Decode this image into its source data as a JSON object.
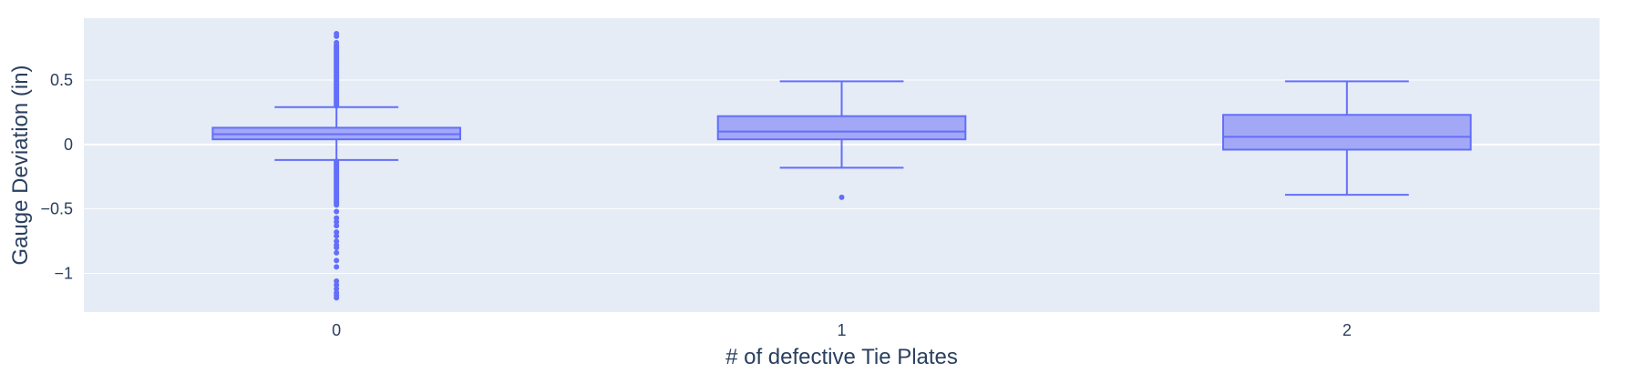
{
  "chart_data": {
    "type": "box",
    "xlabel": "# of defective Tie Plates",
    "ylabel": "Gauge Deviation (in)",
    "categories": [
      "0",
      "1",
      "2"
    ],
    "ylim": [
      -1.3,
      0.98
    ],
    "yticks": [
      -1,
      -0.5,
      0,
      0.5
    ],
    "ytick_labels": [
      "−1",
      "−0.5",
      "0",
      "0.5"
    ],
    "grid": true,
    "colors": {
      "plot_bg": "#e5ecf6",
      "grid": "#ffffff",
      "box_line": "#636efa",
      "box_fill": "#a3a8f6",
      "marker": "#636efa",
      "text": "#2a3f5f"
    },
    "boxes": [
      {
        "category": "0",
        "min": -0.12,
        "q1": 0.04,
        "median": 0.08,
        "q3": 0.13,
        "max": 0.29,
        "outliers": [
          0.86,
          0.84,
          0.79,
          0.77,
          0.76,
          0.75,
          0.74,
          0.73,
          0.72,
          0.71,
          0.7,
          0.69,
          0.68,
          0.67,
          0.66,
          0.65,
          0.64,
          0.63,
          0.62,
          0.61,
          0.6,
          0.59,
          0.58,
          0.57,
          0.56,
          0.55,
          0.54,
          0.53,
          0.52,
          0.51,
          0.5,
          0.49,
          0.48,
          0.47,
          0.46,
          0.45,
          0.44,
          0.43,
          0.42,
          0.41,
          0.4,
          0.39,
          0.38,
          0.37,
          0.36,
          0.35,
          0.34,
          0.33,
          0.32,
          0.31,
          0.3,
          -0.13,
          -0.14,
          -0.15,
          -0.16,
          -0.17,
          -0.18,
          -0.19,
          -0.2,
          -0.21,
          -0.22,
          -0.23,
          -0.24,
          -0.25,
          -0.26,
          -0.27,
          -0.28,
          -0.29,
          -0.3,
          -0.31,
          -0.32,
          -0.33,
          -0.34,
          -0.35,
          -0.36,
          -0.37,
          -0.38,
          -0.39,
          -0.4,
          -0.41,
          -0.42,
          -0.43,
          -0.44,
          -0.45,
          -0.46,
          -0.47,
          -0.52,
          -0.57,
          -0.6,
          -0.63,
          -0.68,
          -0.71,
          -0.75,
          -0.78,
          -0.8,
          -0.84,
          -0.9,
          -0.95,
          -1.06,
          -1.09,
          -1.12,
          -1.15,
          -1.17,
          -1.19
        ]
      },
      {
        "category": "1",
        "min": -0.18,
        "q1": 0.04,
        "median": 0.1,
        "q3": 0.22,
        "max": 0.49,
        "outliers": [
          -0.41
        ]
      },
      {
        "category": "2",
        "min": -0.39,
        "q1": -0.04,
        "median": 0.06,
        "q3": 0.23,
        "max": 0.49,
        "outliers": []
      }
    ]
  }
}
